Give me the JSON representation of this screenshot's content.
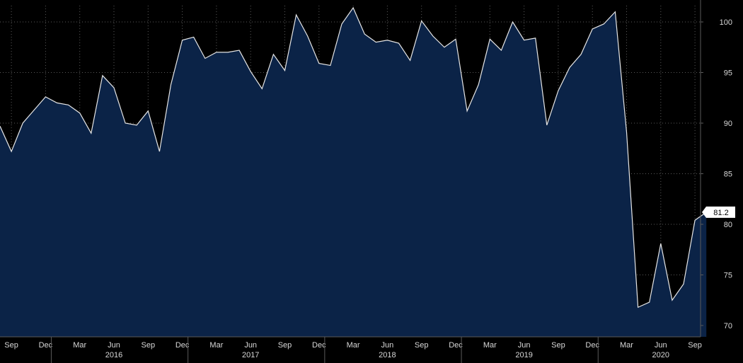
{
  "colors": {
    "background": "#000000",
    "area_fill": "#0b2347",
    "line": "#e6e6e6",
    "grid": "#5a5a5a",
    "text": "#d8d8d8",
    "badge_fill": "#ffffff",
    "badge_text": "#000000"
  },
  "chart_data": {
    "type": "area",
    "title": "",
    "xlabel": "",
    "ylabel": "",
    "grid": true,
    "ylim": [
      69,
      102
    ],
    "yticks": [
      70,
      75,
      80,
      85,
      90,
      95,
      100
    ],
    "y_axis_side": "right",
    "x": [
      "2015-08",
      "2015-09",
      "2015-10",
      "2015-11",
      "2015-12",
      "2016-01",
      "2016-02",
      "2016-03",
      "2016-04",
      "2016-05",
      "2016-06",
      "2016-07",
      "2016-08",
      "2016-09",
      "2016-10",
      "2016-11",
      "2016-12",
      "2017-01",
      "2017-02",
      "2017-03",
      "2017-04",
      "2017-05",
      "2017-06",
      "2017-07",
      "2017-08",
      "2017-09",
      "2017-10",
      "2017-11",
      "2017-12",
      "2018-01",
      "2018-02",
      "2018-03",
      "2018-04",
      "2018-05",
      "2018-06",
      "2018-07",
      "2018-08",
      "2018-09",
      "2018-10",
      "2018-11",
      "2018-12",
      "2019-01",
      "2019-02",
      "2019-03",
      "2019-04",
      "2019-05",
      "2019-06",
      "2019-07",
      "2019-08",
      "2019-09",
      "2019-10",
      "2019-11",
      "2019-12",
      "2020-01",
      "2020-02",
      "2020-03",
      "2020-04",
      "2020-05",
      "2020-06",
      "2020-07",
      "2020-08",
      "2020-09",
      "2020-10"
    ],
    "series": [
      {
        "values": [
          89.7,
          87.2,
          90.0,
          91.3,
          92.6,
          92.0,
          91.8,
          91.0,
          89.0,
          94.7,
          93.5,
          90.0,
          89.8,
          91.2,
          87.2,
          93.8,
          98.2,
          98.5,
          96.4,
          97.0,
          97.0,
          97.2,
          95.1,
          93.4,
          96.8,
          95.2,
          100.7,
          98.6,
          95.9,
          95.7,
          99.8,
          101.4,
          98.8,
          98.0,
          98.2,
          97.9,
          96.2,
          100.1,
          98.6,
          97.5,
          98.3,
          91.2,
          93.8,
          98.3,
          97.2,
          100.0,
          98.2,
          98.4,
          89.8,
          93.2,
          95.5,
          96.8,
          99.3,
          99.8,
          101.0,
          89.1,
          71.8,
          72.3,
          78.1,
          72.5,
          74.1,
          80.4,
          81.2
        ]
      }
    ],
    "x_ticks": [
      {
        "label": "Sep",
        "index": 1
      },
      {
        "label": "Dec",
        "index": 4
      },
      {
        "label": "Mar",
        "index": 7
      },
      {
        "label": "Jun",
        "index": 10
      },
      {
        "label": "Sep",
        "index": 13
      },
      {
        "label": "Dec",
        "index": 16
      },
      {
        "label": "Mar",
        "index": 19
      },
      {
        "label": "Jun",
        "index": 22
      },
      {
        "label": "Sep",
        "index": 25
      },
      {
        "label": "Dec",
        "index": 28
      },
      {
        "label": "Mar",
        "index": 31
      },
      {
        "label": "Jun",
        "index": 34
      },
      {
        "label": "Sep",
        "index": 37
      },
      {
        "label": "Dec",
        "index": 40
      },
      {
        "label": "Mar",
        "index": 43
      },
      {
        "label": "Jun",
        "index": 46
      },
      {
        "label": "Sep",
        "index": 49
      },
      {
        "label": "Dec",
        "index": 52
      },
      {
        "label": "Mar",
        "index": 55
      },
      {
        "label": "Jun",
        "index": 58
      },
      {
        "label": "Sep",
        "index": 61
      }
    ],
    "year_labels": [
      {
        "label": "2016",
        "index": 10,
        "start_index": 4.5
      },
      {
        "label": "2017",
        "index": 22,
        "start_index": 16.5
      },
      {
        "label": "2018",
        "index": 34,
        "start_index": 28.5
      },
      {
        "label": "2019",
        "index": 46,
        "start_index": 40.5
      },
      {
        "label": "2020",
        "index": 58,
        "start_index": 52.5
      }
    ],
    "last_value_label": "81.2"
  }
}
